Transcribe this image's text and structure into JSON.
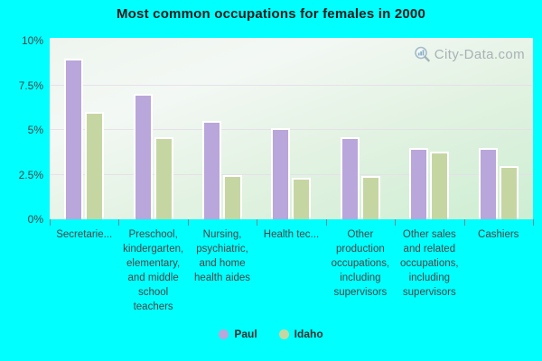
{
  "title": "Most common occupations for females in 2000",
  "watermark": {
    "text": "City-Data.com",
    "icon": "magnifier-bars-icon"
  },
  "colors": {
    "background": "#00ffff",
    "paul_bar": "#b9a6da",
    "idaho_bar": "#c6d6a2",
    "bar_border": "#ffffff",
    "gridline": "#e6dee9",
    "axis_text": "#454545",
    "watermark_text": "#a9b1b5"
  },
  "chart_data": {
    "type": "bar",
    "title": "Most common occupations for females in 2000",
    "categories": [
      "Secretarie...",
      "Preschool, kindergarten, elementary, and middle school teachers",
      "Nursing, psychiatric, and home health aides",
      "Health tec...",
      "Other production occupations, including supervisors",
      "Other sales and related occupations, including supervisors",
      "Cashiers"
    ],
    "series": [
      {
        "name": "Paul",
        "color": "#b9a6da",
        "values": [
          9.0,
          7.0,
          5.5,
          5.1,
          4.6,
          4.0,
          4.0
        ]
      },
      {
        "name": "Idaho",
        "color": "#c6d6a2",
        "values": [
          6.0,
          4.6,
          2.5,
          2.3,
          2.4,
          3.8,
          3.0
        ]
      }
    ],
    "ylim": [
      0,
      10
    ],
    "yticks": [
      {
        "value": 0,
        "label": "0%"
      },
      {
        "value": 2.5,
        "label": "2.5%"
      },
      {
        "value": 5,
        "label": "5%"
      },
      {
        "value": 7.5,
        "label": "7.5%"
      },
      {
        "value": 10,
        "label": "10%"
      }
    ],
    "gridlines": [
      2.5,
      5,
      7.5
    ],
    "grid": "horizontal",
    "legend_position": "bottom"
  }
}
